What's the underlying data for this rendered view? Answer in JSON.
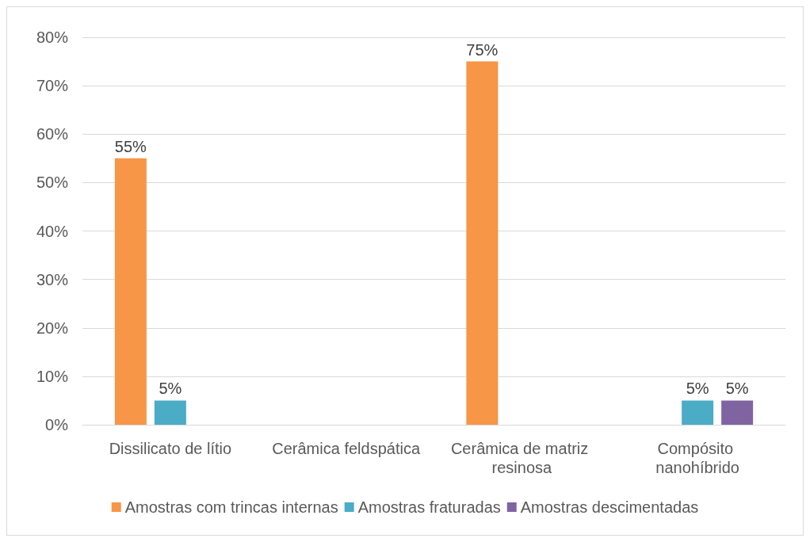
{
  "chart_data": {
    "type": "bar",
    "categories": [
      "Dissilicato de lítio",
      "Cerâmica feldspática",
      "Cerâmica de matriz resinosa",
      "Compósito nanohíbrido"
    ],
    "series": [
      {
        "name": "Amostras com trincas internas",
        "color": "#f79646",
        "values": [
          55,
          null,
          75,
          null
        ],
        "value_labels": [
          "55%",
          null,
          "75%",
          null
        ]
      },
      {
        "name": "Amostras fraturadas",
        "color": "#4bacc6",
        "values": [
          5,
          null,
          null,
          5
        ],
        "value_labels": [
          "5%",
          null,
          null,
          "5%"
        ]
      },
      {
        "name": "Amostras descimentadas",
        "color": "#8064a2",
        "values": [
          null,
          null,
          null,
          5
        ],
        "value_labels": [
          null,
          null,
          null,
          "5%"
        ]
      }
    ],
    "ylim": [
      0,
      80
    ],
    "yticks": [
      {
        "value": 0,
        "label": "0%"
      },
      {
        "value": 10,
        "label": "10%"
      },
      {
        "value": 20,
        "label": "20%"
      },
      {
        "value": 30,
        "label": "30%"
      },
      {
        "value": 40,
        "label": "40%"
      },
      {
        "value": 50,
        "label": "50%"
      },
      {
        "value": 60,
        "label": "60%"
      },
      {
        "value": 70,
        "label": "70%"
      },
      {
        "value": 80,
        "label": "80%"
      }
    ],
    "grid": "y",
    "legend": "bottom"
  }
}
